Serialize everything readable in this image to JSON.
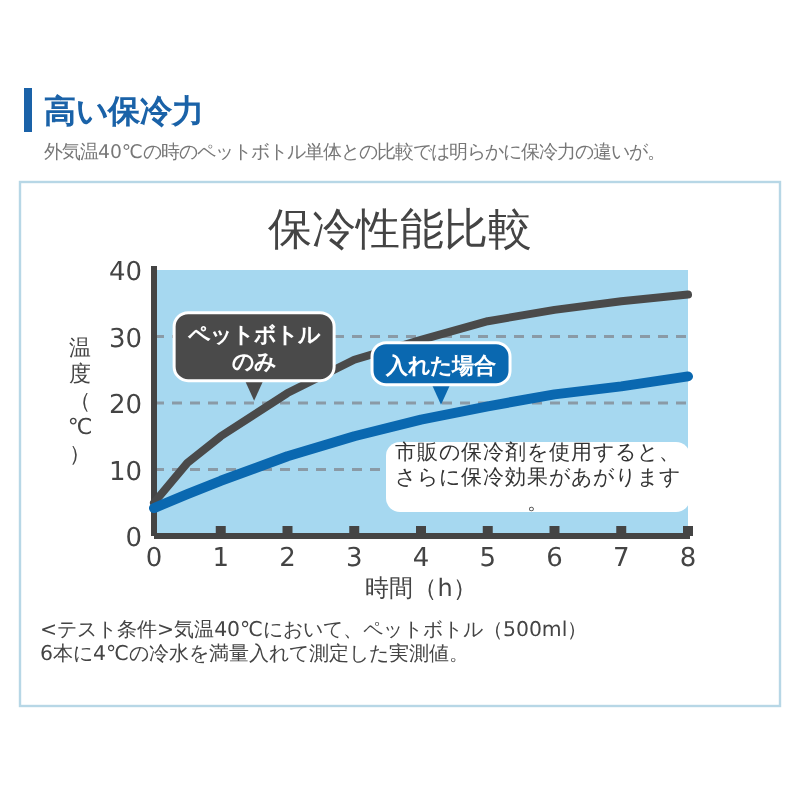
{
  "chart_data": {
    "type": "line",
    "title": "保冷性能比較",
    "xlabel": "時間（h）",
    "ylabel": "温度（℃）",
    "x": [
      0,
      0.5,
      1,
      2,
      3,
      4,
      5,
      6,
      7,
      8
    ],
    "series": [
      {
        "name": "ペットボトルのみ",
        "color": "#4a4a4a",
        "values": [
          5,
          11,
          15,
          21.5,
          26.5,
          29.5,
          32.3,
          34,
          35.3,
          36.3
        ]
      },
      {
        "name": "入れた場合",
        "color": "#0a68b0",
        "values": [
          4.2,
          6.3,
          8.3,
          12,
          15,
          17.5,
          19.5,
          21.3,
          22.5,
          24
        ]
      }
    ],
    "xlim": [
      0,
      8
    ],
    "ylim": [
      0,
      40
    ],
    "xticks": [
      0,
      1,
      2,
      3,
      4,
      5,
      6,
      7,
      8
    ],
    "yticks": [
      0,
      10,
      20,
      30,
      40
    ],
    "grid": "y",
    "line_style": "solid",
    "marker": "none",
    "annotations": [
      "高い保冷力",
      "外気温40℃の時のペットボトル単体との比較では明らかに保冷力の違いが。",
      "市販の保冷剤を使用すると、さらに保冷効果があがります。",
      "<テスト条件>気温40℃において、ペットボトル（500ml）6本に4℃の冷水を満量入れて測定した実測値。"
    ]
  }
}
